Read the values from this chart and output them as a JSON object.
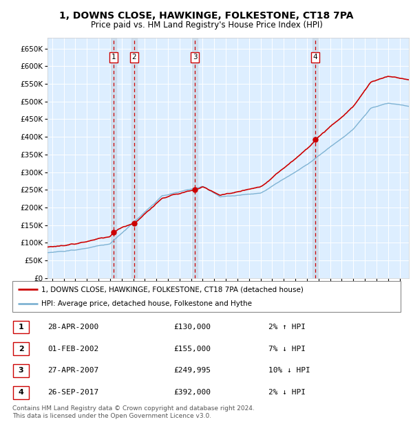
{
  "title": "1, DOWNS CLOSE, HAWKINGE, FOLKESTONE, CT18 7PA",
  "subtitle": "Price paid vs. HM Land Registry's House Price Index (HPI)",
  "yticks": [
    0,
    50000,
    100000,
    150000,
    200000,
    250000,
    300000,
    350000,
    400000,
    450000,
    500000,
    550000,
    600000,
    650000
  ],
  "ylim": [
    0,
    680000
  ],
  "xlim_start": 1994.6,
  "xlim_end": 2025.8,
  "background_color": "#ffffff",
  "plot_bg_color": "#ddeeff",
  "grid_color": "#ffffff",
  "red_line_color": "#cc0000",
  "blue_line_color": "#7fb3d3",
  "sale_points": [
    {
      "num": 1,
      "year": 2000.32,
      "price": 130000
    },
    {
      "num": 2,
      "year": 2002.08,
      "price": 155000
    },
    {
      "num": 3,
      "year": 2007.32,
      "price": 249995
    },
    {
      "num": 4,
      "year": 2017.73,
      "price": 392000
    }
  ],
  "legend_entries": [
    {
      "label": "1, DOWNS CLOSE, HAWKINGE, FOLKESTONE, CT18 7PA (detached house)",
      "color": "#cc0000"
    },
    {
      "label": "HPI: Average price, detached house, Folkestone and Hythe",
      "color": "#7fb3d3"
    }
  ],
  "table_rows": [
    {
      "num": 1,
      "date": "28-APR-2000",
      "price": "£130,000",
      "pct": "2% ↑ HPI"
    },
    {
      "num": 2,
      "date": "01-FEB-2002",
      "price": "£155,000",
      "pct": "7% ↓ HPI"
    },
    {
      "num": 3,
      "date": "27-APR-2007",
      "price": "£249,995",
      "pct": "10% ↓ HPI"
    },
    {
      "num": 4,
      "date": "26-SEP-2017",
      "price": "£392,000",
      "pct": "2% ↓ HPI"
    }
  ],
  "footer": "Contains HM Land Registry data © Crown copyright and database right 2024.\nThis data is licensed under the Open Government Licence v3.0.",
  "vline_color": "#cc0000"
}
